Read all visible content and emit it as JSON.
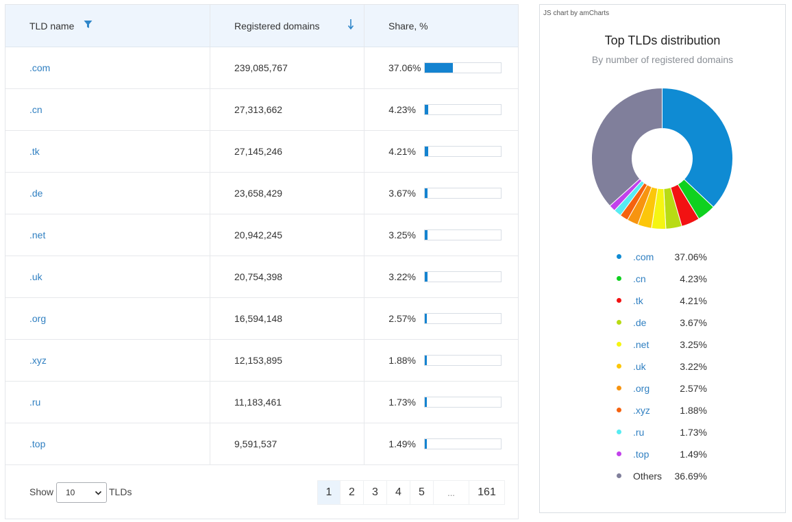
{
  "table": {
    "headers": {
      "tld_name": "TLD name",
      "registered_domains": "Registered domains",
      "share": "Share, %"
    },
    "rows": [
      {
        "tld": ".com",
        "domains": "239,085,767",
        "share_label": "37.06%",
        "share": 37.06
      },
      {
        "tld": ".cn",
        "domains": "27,313,662",
        "share_label": "4.23%",
        "share": 4.23
      },
      {
        "tld": ".tk",
        "domains": "27,145,246",
        "share_label": "4.21%",
        "share": 4.21
      },
      {
        "tld": ".de",
        "domains": "23,658,429",
        "share_label": "3.67%",
        "share": 3.67
      },
      {
        "tld": ".net",
        "domains": "20,942,245",
        "share_label": "3.25%",
        "share": 3.25
      },
      {
        "tld": ".uk",
        "domains": "20,754,398",
        "share_label": "3.22%",
        "share": 3.22
      },
      {
        "tld": ".org",
        "domains": "16,594,148",
        "share_label": "2.57%",
        "share": 2.57
      },
      {
        "tld": ".xyz",
        "domains": "12,153,895",
        "share_label": "1.88%",
        "share": 1.88
      },
      {
        "tld": ".ru",
        "domains": "11,183,461",
        "share_label": "1.73%",
        "share": 1.73
      },
      {
        "tld": ".top",
        "domains": "9,591,537",
        "share_label": "1.49%",
        "share": 1.49
      }
    ],
    "footer": {
      "show_label": "Show",
      "page_size": "10",
      "tlds_label": "TLDs",
      "pages": [
        "1",
        "2",
        "3",
        "4",
        "5",
        "...",
        "161"
      ],
      "active_page": "1"
    }
  },
  "chart_panel": {
    "credit": "JS chart by amCharts"
  },
  "chart_data": {
    "type": "pie",
    "title": "Top TLDs distribution",
    "subtitle": "By number of registered domains",
    "donut": true,
    "legend_position": "bottom",
    "slices": [
      {
        "name": ".com",
        "value": 37.06,
        "label": "37.06%",
        "color": "#0f8bd3",
        "link": true
      },
      {
        "name": ".cn",
        "value": 4.23,
        "label": "4.23%",
        "color": "#0fd11f",
        "link": true
      },
      {
        "name": ".tk",
        "value": 4.21,
        "label": "4.21%",
        "color": "#f21212",
        "link": true
      },
      {
        "name": ".de",
        "value": 3.67,
        "label": "3.67%",
        "color": "#b8db14",
        "link": true
      },
      {
        "name": ".net",
        "value": 3.25,
        "label": "3.25%",
        "color": "#f5f512",
        "link": true
      },
      {
        "name": ".uk",
        "value": 3.22,
        "label": "3.22%",
        "color": "#fcc60a",
        "link": true
      },
      {
        "name": ".org",
        "value": 2.57,
        "label": "2.57%",
        "color": "#f79410",
        "link": true
      },
      {
        "name": ".xyz",
        "value": 1.88,
        "label": "1.88%",
        "color": "#f5620f",
        "link": true
      },
      {
        "name": ".ru",
        "value": 1.73,
        "label": "1.73%",
        "color": "#57ecf2",
        "link": true
      },
      {
        "name": ".top",
        "value": 1.49,
        "label": "1.49%",
        "color": "#c242eb",
        "link": true
      },
      {
        "name": "Others",
        "value": 36.69,
        "label": "36.69%",
        "color": "#807f9b",
        "link": false
      }
    ]
  }
}
